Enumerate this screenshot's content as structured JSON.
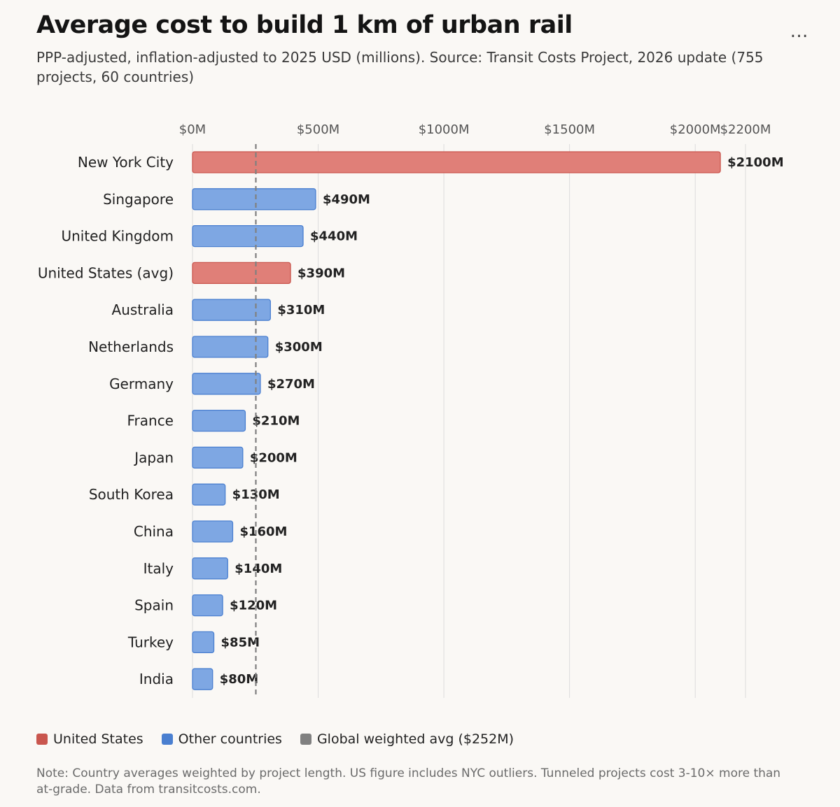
{
  "header": {
    "title": "Average cost to build 1 km of urban rail",
    "subtitle": "PPP-adjusted, inflation-adjusted to 2025 USD (millions). Source: Transit Costs Project, 2026 update (755 projects, 60 countries)",
    "more_label": "…"
  },
  "colors": {
    "us": "#e07f78",
    "us_stroke": "#c9564e",
    "other": "#7ea7e3",
    "other_stroke": "#4a7fd0",
    "avg_line": "#808080",
    "grid": "#dcdcdc"
  },
  "chart_data": {
    "type": "bar",
    "orientation": "horizontal",
    "title": "Average cost to build 1 km of urban rail",
    "xlabel": "",
    "ylabel": "",
    "xlim": [
      0,
      2200
    ],
    "ticks": [
      0,
      500,
      1000,
      1500,
      2000,
      2200
    ],
    "tick_labels": [
      "$0M",
      "$500M",
      "$1000M",
      "$1500M",
      "$2000M",
      "$2200M"
    ],
    "grid": true,
    "categories": [
      "New York City",
      "Singapore",
      "United Kingdom",
      "United States (avg)",
      "Australia",
      "Netherlands",
      "Germany",
      "France",
      "Japan",
      "South Korea",
      "China",
      "Italy",
      "Spain",
      "Turkey",
      "India"
    ],
    "values": [
      2100,
      490,
      440,
      390,
      310,
      300,
      270,
      210,
      200,
      130,
      160,
      140,
      120,
      85,
      80
    ],
    "value_labels": [
      "$2100M",
      "$490M",
      "$440M",
      "$390M",
      "$310M",
      "$300M",
      "$270M",
      "$210M",
      "$200M",
      "$130M",
      "$160M",
      "$140M",
      "$120M",
      "$85M",
      "$80M"
    ],
    "groups": [
      "us",
      "other",
      "other",
      "us",
      "other",
      "other",
      "other",
      "other",
      "other",
      "other",
      "other",
      "other",
      "other",
      "other",
      "other"
    ],
    "reference_line": {
      "value": 252,
      "label": "Global weighted avg ($252M)"
    }
  },
  "legend": {
    "us_label": "United States",
    "other_label": "Other countries",
    "avg_label": "Global weighted avg ($252M)"
  },
  "note": "Note: Country averages weighted by project length. US figure includes NYC outliers. Tunneled projects cost 3-10× more than at-grade. Data from transitcosts.com."
}
